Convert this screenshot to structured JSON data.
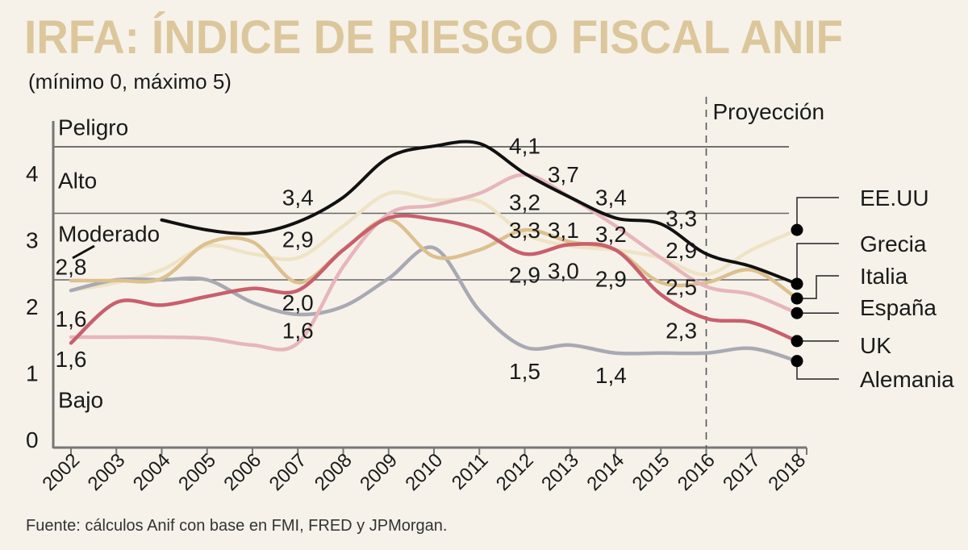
{
  "chart_data": {
    "type": "line",
    "title": "IRFA: ÍNDICE DE RIESGO FISCAL ANIF",
    "subtitle": "(mínimo 0, máximo 5)",
    "source": "Fuente: cálculos Anif con base en FMI, FRED y JPMorgan.",
    "projection_label": "Proyección",
    "projection_start": 2016,
    "ylim": [
      0,
      5
    ],
    "yticks": [
      "0",
      "1",
      "2",
      "3",
      "4"
    ],
    "ytick_values": [
      0,
      1,
      2,
      3,
      4
    ],
    "x": [
      2002,
      2003,
      2004,
      2005,
      2006,
      2007,
      2008,
      2009,
      2010,
      2011,
      2012,
      2013,
      2014,
      2015,
      2016,
      2017,
      2018
    ],
    "xticks": [
      "2002",
      "2003",
      "2004",
      "2005",
      "2006",
      "2007",
      "2008",
      "2009",
      "2010",
      "2011",
      "2012",
      "2013",
      "2014",
      "2015",
      "2016",
      "2017",
      "2018"
    ],
    "zones": [
      {
        "label": "Peligro",
        "label_y": 4.7
      },
      {
        "label": "Alto",
        "label_y": 3.9
      },
      {
        "label": "Moderado",
        "label_y": 3.1
      },
      {
        "label": "Bajo",
        "label_y": 0.6
      }
    ],
    "thresholds": [
      4.4,
      3.4,
      2.4
    ],
    "series": [
      {
        "name": "EE.UU",
        "color": "#efe3c6",
        "values": [
          2.24,
          2.36,
          2.55,
          2.91,
          2.79,
          2.73,
          3.21,
          3.7,
          3.6,
          3.58,
          3.09,
          2.91,
          2.85,
          2.73,
          2.48,
          2.85,
          3.15
        ]
      },
      {
        "name": "Grecia",
        "color": "#111111",
        "values": [
          null,
          null,
          3.3,
          3.15,
          3.1,
          3.27,
          3.64,
          4.24,
          4.41,
          4.45,
          4.0,
          3.64,
          3.33,
          3.24,
          2.79,
          2.6,
          2.34
        ]
      },
      {
        "name": "Italia",
        "color": "#dcc08e",
        "values": [
          2.39,
          2.39,
          2.42,
          2.95,
          2.97,
          2.36,
          2.85,
          3.31,
          2.75,
          2.85,
          3.15,
          2.97,
          2.85,
          2.36,
          2.36,
          2.55,
          2.12
        ]
      },
      {
        "name": "España",
        "color": "#e6b6bb",
        "values": [
          1.54,
          1.54,
          1.54,
          1.52,
          1.42,
          1.45,
          2.6,
          3.39,
          3.52,
          3.7,
          3.98,
          3.64,
          3.21,
          2.73,
          2.3,
          2.18,
          1.9
        ]
      },
      {
        "name": "UK",
        "color": "#c95f6d",
        "values": [
          1.45,
          2.06,
          2.02,
          2.15,
          2.27,
          2.24,
          2.85,
          3.33,
          3.31,
          3.15,
          2.79,
          2.93,
          2.85,
          2.18,
          1.82,
          1.76,
          1.48
        ]
      },
      {
        "name": "Alemania",
        "color": "#a9a9b3",
        "values": [
          2.24,
          2.4,
          2.4,
          2.4,
          2.06,
          1.88,
          2.0,
          2.42,
          2.88,
          1.94,
          1.39,
          1.42,
          1.3,
          1.3,
          1.3,
          1.37,
          1.18
        ]
      }
    ],
    "annotations": [
      {
        "text": "2,8",
        "x": 2002,
        "y": 2.6
      },
      {
        "text": "1,6",
        "x": 2002,
        "y": 1.82
      },
      {
        "text": "1,6",
        "x": 2002,
        "y": 1.21
      },
      {
        "text": "3,4",
        "x": 2007,
        "y": 3.64
      },
      {
        "text": "2,9",
        "x": 2007,
        "y": 3.01
      },
      {
        "text": "2,0",
        "x": 2007,
        "y": 2.06
      },
      {
        "text": "1,6",
        "x": 2007,
        "y": 1.64
      },
      {
        "text": "4,1",
        "x": 2012,
        "y": 4.42
      },
      {
        "text": "3,7",
        "x": 2012.85,
        "y": 3.99
      },
      {
        "text": "3,2",
        "x": 2012,
        "y": 3.57
      },
      {
        "text": "3,3",
        "x": 2012,
        "y": 3.15
      },
      {
        "text": "3,1",
        "x": 2012.85,
        "y": 3.15
      },
      {
        "text": "2,9",
        "x": 2012,
        "y": 2.48
      },
      {
        "text": "3,0",
        "x": 2012.85,
        "y": 2.54
      },
      {
        "text": "3,4",
        "x": 2013.9,
        "y": 3.64
      },
      {
        "text": "3,2",
        "x": 2013.9,
        "y": 3.09
      },
      {
        "text": "2,9",
        "x": 2013.9,
        "y": 2.42
      },
      {
        "text": "3,3",
        "x": 2015.45,
        "y": 3.33
      },
      {
        "text": "2,9",
        "x": 2015.45,
        "y": 2.85
      },
      {
        "text": "2,5",
        "x": 2015.45,
        "y": 2.3
      },
      {
        "text": "2,3",
        "x": 2015.45,
        "y": 1.64
      },
      {
        "text": "1,5",
        "x": 2012,
        "y": 1.03
      },
      {
        "text": "1,4",
        "x": 2013.9,
        "y": 0.97
      }
    ],
    "legend_placement": "right"
  }
}
